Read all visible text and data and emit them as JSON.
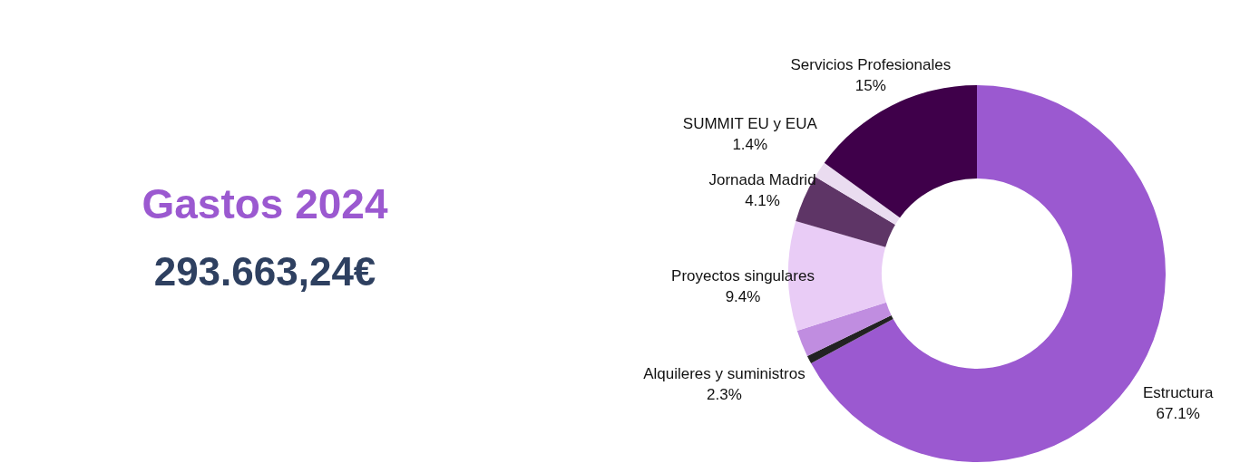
{
  "chart_data": {
    "type": "donut",
    "title": "Gastos 2024",
    "subtitle": "293.663,24€",
    "categories": [
      "Estructura",
      null,
      "Alquileres y suministros",
      "Proyectos singulares",
      "Jornada Madrid",
      "SUMMIT EU y EUA",
      "Servicios Profesionales"
    ],
    "values": [
      67.1,
      0.7,
      2.3,
      9.4,
      4.1,
      1.4,
      15
    ],
    "value_labels": [
      "67.1%",
      null,
      "2.3%",
      "9.4%",
      "4.1%",
      "1.4%",
      "15%"
    ],
    "colors": [
      "#9b59d0",
      "#222222",
      "#c08de0",
      "#e9ccf6",
      "#5e3566",
      "#eadcf0",
      "#3f004a"
    ],
    "legend": false
  }
}
